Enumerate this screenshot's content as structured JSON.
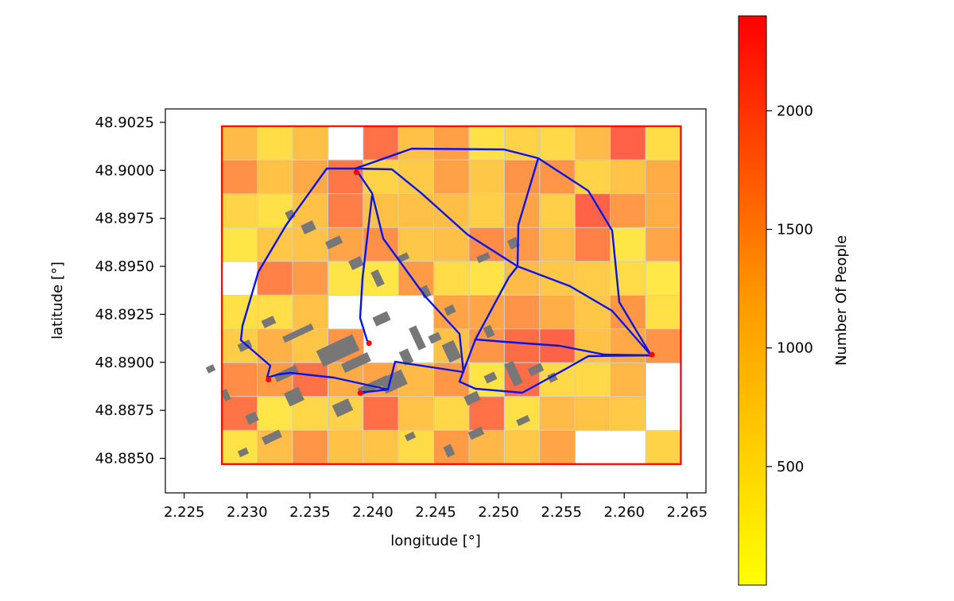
{
  "map": {
    "xlabel": "longitude [°]",
    "ylabel": "latitude [°]",
    "x_ticks": [
      "2.225",
      "2.230",
      "2.235",
      "2.240",
      "2.245",
      "2.250",
      "2.255",
      "2.260",
      "2.265"
    ],
    "y_ticks": [
      "48.8850",
      "48.8875",
      "48.8900",
      "48.8925",
      "48.8950",
      "48.8975",
      "48.9000",
      "48.9025"
    ],
    "colors": {
      "grid_line": "#d2d2d2",
      "boundary": "#ff0000",
      "route": "#0a14e6",
      "building": "#777777",
      "stop": "#ff0000"
    }
  },
  "colorbar": {
    "label": "Number Of People",
    "ticks": [
      "500",
      "1000",
      "1500",
      "2000"
    ],
    "range": [
      0,
      2400
    ],
    "colormap": "autumn_r (yellow → red)"
  },
  "chart_data": {
    "type": "heatmap",
    "xlabel": "longitude [°]",
    "ylabel": "latitude [°]",
    "xlim": [
      2.2235,
      2.2665
    ],
    "ylim": [
      48.8832,
      48.9032
    ],
    "grid_on": false,
    "colorbar_label": "Number Of People",
    "colorbar_range": [
      0,
      2400
    ],
    "study_area": {
      "lon": [
        2.228,
        2.2645
      ],
      "lat": [
        48.8847,
        48.9023
      ]
    },
    "stops": [
      {
        "lon": 2.2387,
        "lat": 48.8999
      },
      {
        "lon": 2.2397,
        "lat": 48.891
      },
      {
        "lon": 2.239,
        "lat": 48.8884
      },
      {
        "lon": 2.2317,
        "lat": 48.8891
      },
      {
        "lon": 2.2622,
        "lat": 48.8904
      }
    ]
  }
}
